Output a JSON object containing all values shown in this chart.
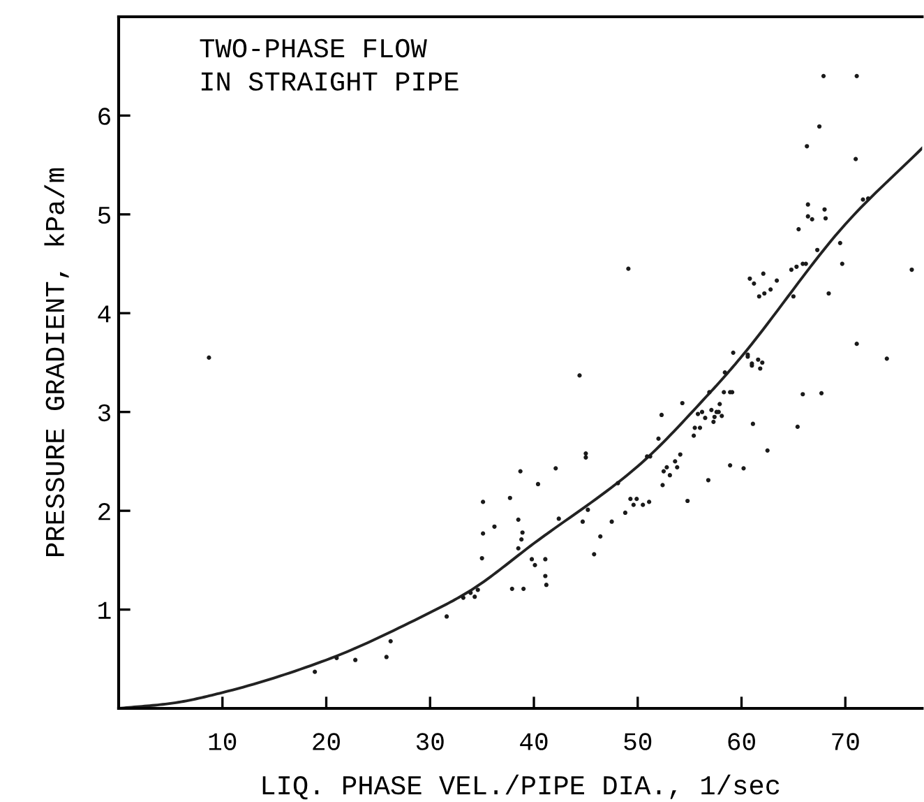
{
  "chart_data": {
    "type": "scatter",
    "title": "TWO-PHASE FLOW\nIN STRAIGHT PIPE",
    "xlabel": "LIQ. PHASE VEL./PIPE DIA., 1/sec",
    "ylabel": "PRESSURE GRADIENT, kPa/m",
    "xlim": [
      0,
      77.4
    ],
    "ylim": [
      0,
      7
    ],
    "xticks": [
      10,
      20,
      30,
      40,
      50,
      60,
      70
    ],
    "yticks": [
      1,
      2,
      3,
      4,
      5,
      6
    ],
    "series": [
      {
        "marker": "circle",
        "color": "#1a1a1a",
        "x": [
          18.9,
          21.0,
          22.8,
          25.8,
          26.2,
          31.6,
          33.2,
          33.9,
          34.6,
          34.3,
          35.0,
          35.1,
          35.1,
          36.2,
          37.7,
          37.9,
          38.5,
          38.8,
          38.5,
          38.9,
          38.7,
          39.0,
          39.8,
          40.1,
          40.4,
          41.1,
          41.1,
          41.2,
          42.1,
          42.4,
          44.7,
          45.0,
          45.0,
          45.2,
          45.8,
          46.4,
          47.5,
          48.1,
          48.8,
          49.3,
          49.9,
          50.5,
          51.1,
          49.6,
          50.9,
          52.0,
          52.3,
          52.5,
          52.8,
          53.1,
          52.4,
          53.6,
          53.8,
          54.1,
          54.8,
          55.4,
          56.0,
          56.5,
          57.1,
          57.3,
          57.6,
          57.9,
          58.1,
          56.8,
          58.9,
          60.2,
          61.1,
          62.5,
          65.4,
          65.9,
          8.7,
          44.4,
          49.1,
          51.2,
          54.3,
          55.8,
          55.5,
          56.2,
          56.9,
          57.4,
          57.8,
          58.3,
          58.9,
          59.1,
          58.4,
          59.2,
          60.6,
          61.0,
          61.6,
          61.8,
          62.0,
          60.6,
          61.0,
          60.8,
          61.2,
          61.7,
          62.2,
          62.8,
          63.4,
          62.1,
          65.0,
          64.8,
          65.3,
          65.9,
          66.2,
          65.5,
          66.4,
          66.8,
          66.4,
          68.0,
          68.1,
          67.3,
          68.4,
          69.7,
          69.5,
          66.3,
          67.5,
          67.9,
          71.1,
          71.0,
          71.7,
          72.2,
          71.1,
          74.0,
          67.7,
          76.4
        ],
        "values": [
          0.37,
          0.51,
          0.49,
          0.52,
          0.68,
          0.93,
          1.12,
          1.17,
          1.2,
          1.13,
          1.52,
          1.77,
          2.09,
          1.84,
          2.13,
          1.21,
          1.91,
          1.71,
          1.62,
          1.78,
          2.4,
          1.21,
          1.51,
          1.45,
          2.27,
          1.34,
          1.51,
          1.25,
          2.43,
          1.92,
          1.89,
          2.58,
          2.54,
          2.01,
          1.56,
          1.74,
          1.89,
          2.28,
          1.98,
          2.12,
          2.12,
          2.06,
          2.09,
          2.06,
          2.55,
          2.73,
          2.97,
          2.4,
          2.44,
          2.36,
          2.26,
          2.5,
          2.44,
          2.57,
          2.1,
          2.76,
          2.84,
          2.94,
          3.02,
          2.9,
          3.0,
          3.08,
          2.96,
          2.31,
          2.46,
          2.43,
          2.88,
          2.61,
          2.85,
          3.18,
          3.55,
          3.37,
          4.45,
          2.55,
          3.09,
          2.98,
          2.84,
          3.0,
          3.2,
          2.95,
          3.0,
          3.2,
          3.2,
          3.2,
          3.4,
          3.6,
          3.58,
          3.47,
          3.53,
          3.44,
          3.5,
          3.56,
          3.49,
          4.35,
          4.3,
          4.17,
          4.2,
          4.24,
          4.33,
          4.4,
          4.17,
          4.44,
          4.47,
          4.5,
          4.5,
          4.85,
          4.98,
          4.95,
          5.1,
          5.05,
          4.96,
          4.64,
          4.2,
          4.5,
          4.71,
          5.69,
          5.89,
          6.4,
          6.4,
          5.56,
          5.15,
          5.16,
          3.69,
          3.54,
          3.19,
          4.44
        ]
      },
      {
        "type": "line",
        "marker": "none",
        "color": "#222222",
        "x": [
          0,
          5,
          10,
          20,
          30,
          34,
          40,
          50,
          57,
          60,
          70,
          77.4
        ],
        "values": [
          0,
          0.05,
          0.16,
          0.49,
          0.97,
          1.2,
          1.67,
          2.45,
          3.2,
          3.56,
          4.9,
          5.67
        ]
      }
    ]
  }
}
